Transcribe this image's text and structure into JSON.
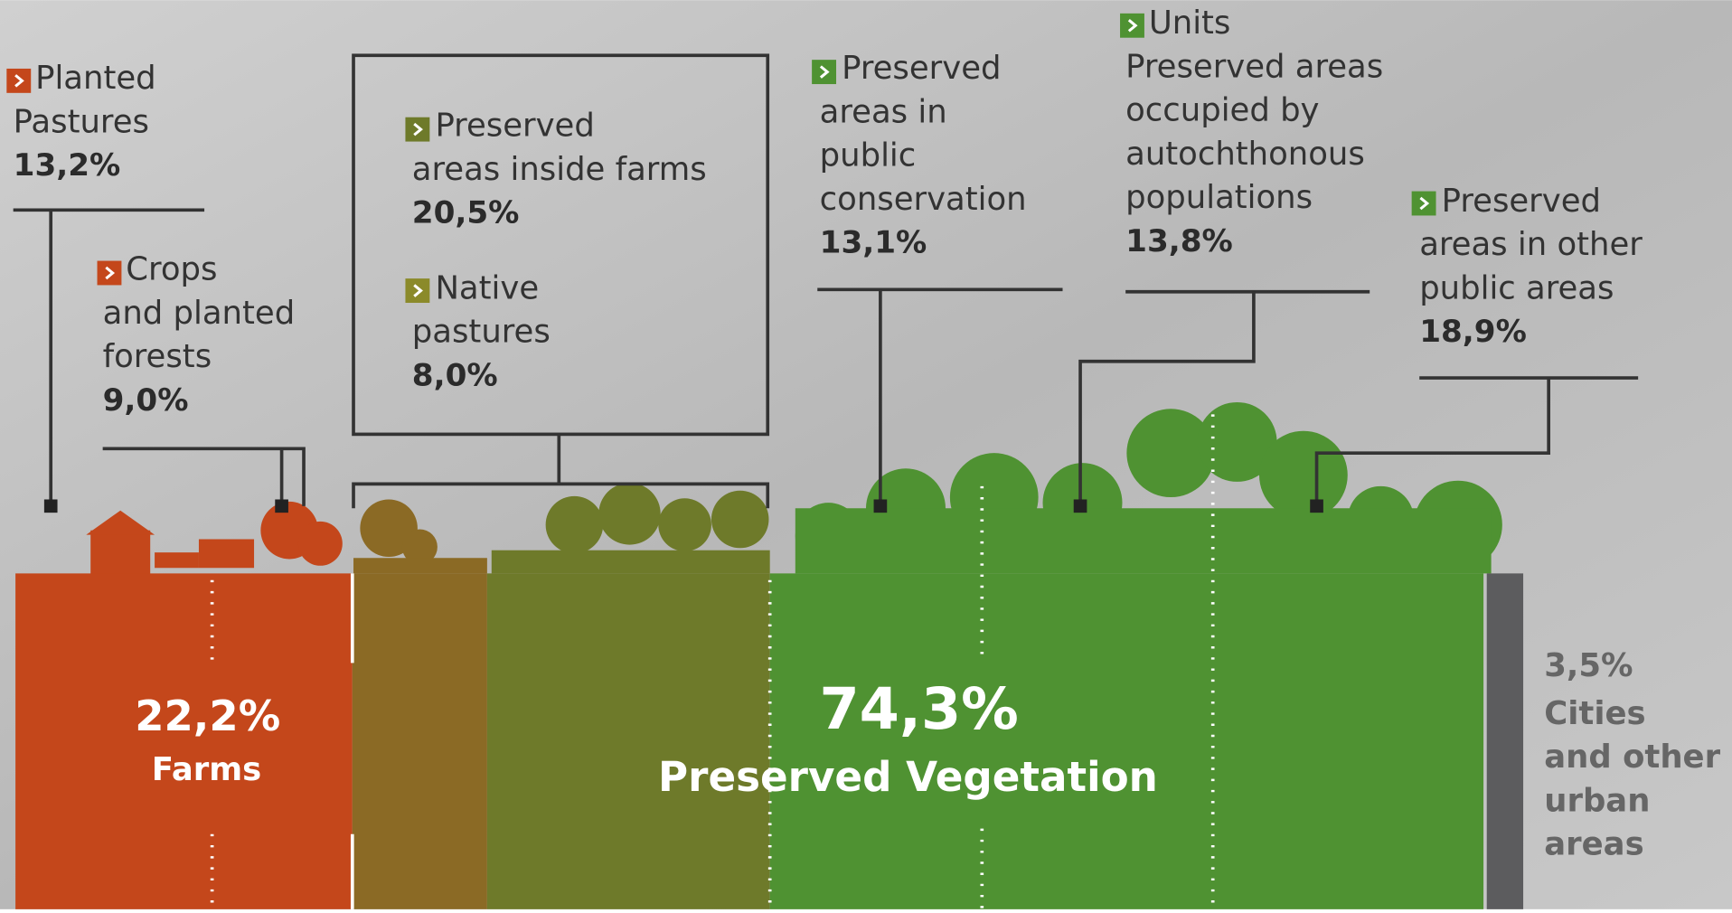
{
  "labels": [
    {
      "lines": [
        "Planted",
        "Pastures"
      ],
      "value": "13,2%"
    },
    {
      "lines": [
        "Crops",
        "and planted",
        "forests"
      ],
      "value": "9,0%"
    },
    {
      "lines": [
        "Preserved",
        "areas inside farms"
      ],
      "value": "20,5%"
    },
    {
      "lines": [
        "Native",
        "pastures"
      ],
      "value": "8,0%"
    },
    {
      "lines": [
        "Preserved",
        "areas in",
        "public",
        "conservation"
      ],
      "value": "13,1%"
    },
    {
      "lines": [
        "Units",
        "Preserved areas",
        "occupied by",
        "autochthonous",
        "populations"
      ],
      "value": "13,8%"
    },
    {
      "lines": [
        "Preserved",
        "areas in other",
        "public areas"
      ],
      "value": "18,9%"
    }
  ],
  "totals": [
    {
      "value": "22,2%",
      "lines": [
        "Farms"
      ]
    },
    {
      "value": "74,3%",
      "lines": [
        "Preserved Vegetation"
      ]
    },
    {
      "value": "3,5%",
      "lines": [
        "Cities",
        "and other",
        "urban",
        "areas"
      ]
    }
  ]
}
